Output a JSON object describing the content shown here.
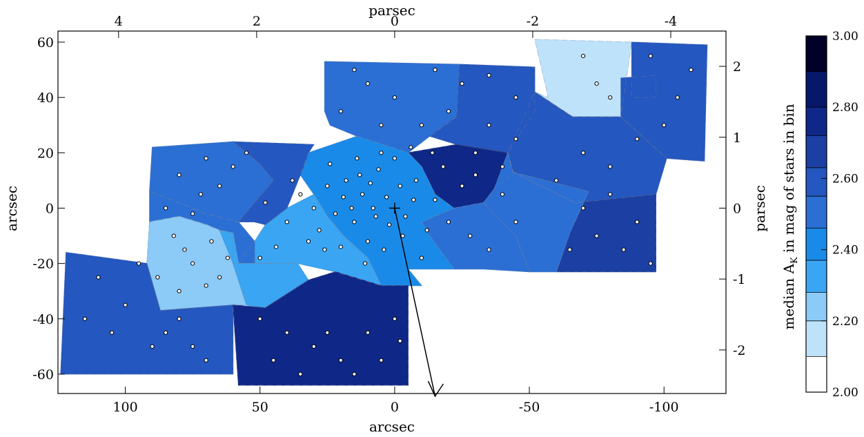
{
  "chart_data": {
    "type": "heatmap",
    "title": "",
    "xlabel_bottom": "arcsec",
    "xlabel_top": "parsec",
    "ylabel_left": "arcsec",
    "ylabel_right": "parsec",
    "xlim": [
      125,
      -123
    ],
    "ylim": [
      -67,
      64
    ],
    "x_ticks": [
      100,
      50,
      0,
      -50,
      -100
    ],
    "x_tick_labels": [
      "100",
      "50",
      "0",
      "-50",
      "-100"
    ],
    "y_ticks": [
      60,
      40,
      20,
      0,
      -20,
      -40,
      -60
    ],
    "y_tick_labels": [
      "60",
      "40",
      "20",
      "0",
      "-20",
      "-40",
      "-60"
    ],
    "top_ticks_arcsec": [
      102.5,
      51.25,
      0,
      -51.25,
      -102.5
    ],
    "top_tick_labels": [
      "4",
      "2",
      "0",
      "-2",
      "-4"
    ],
    "right_ticks_arcsec": [
      51.25,
      25.625,
      0,
      -25.625,
      -51.25
    ],
    "right_tick_labels": [
      "2",
      "1",
      "0",
      "-1",
      "-2"
    ],
    "colorbar": {
      "label_prefix": "median A",
      "label_sub": "K",
      "label_suffix": " in mag of stars in bin",
      "range": [
        2.0,
        3.0
      ],
      "tick_values": [
        3.0,
        2.8,
        2.6,
        2.4,
        2.2,
        2.0
      ],
      "tick_labels": [
        "3.00",
        "2.80",
        "2.60",
        "2.40",
        "2.20",
        "2.00"
      ],
      "boundaries": [
        2.0,
        2.1,
        2.2,
        2.28,
        2.37,
        2.46,
        2.55,
        2.63,
        2.72,
        2.8,
        2.9,
        3.0
      ],
      "colors": [
        "#ffffff",
        "#bfe2fb",
        "#8ccaf7",
        "#3aa5f3",
        "#1a8ae8",
        "#2b6fd4",
        "#2457bf",
        "#1b3fa3",
        "#0f2787",
        "#07186a",
        "#000028"
      ]
    },
    "center_marker_arcsec": [
      0,
      0
    ],
    "arrow_from_arcsec": [
      0,
      0
    ],
    "arrow_to_arcsec": [
      -15,
      -68
    ],
    "bins": [
      {
        "poly": [
          [
            26,
            53
          ],
          [
            -24,
            52
          ],
          [
            -23,
            33
          ],
          [
            -13,
            26
          ],
          [
            -5,
            20
          ],
          [
            14,
            26
          ],
          [
            24,
            30
          ],
          [
            26,
            35
          ]
        ],
        "value": 2.46
      },
      {
        "poly": [
          [
            -24,
            52
          ],
          [
            -52,
            51
          ],
          [
            -52,
            35
          ],
          [
            -42,
            20
          ],
          [
            -23,
            23
          ],
          [
            -13,
            26
          ],
          [
            -23,
            33
          ]
        ],
        "value": 2.55
      },
      {
        "poly": [
          [
            -52,
            61
          ],
          [
            -88,
            60
          ],
          [
            -84,
            33
          ],
          [
            -66,
            33
          ],
          [
            -52,
            42
          ],
          [
            -57,
            40
          ]
        ],
        "value": 2.1
      },
      {
        "poly": [
          [
            -88,
            60
          ],
          [
            -116,
            59
          ],
          [
            -115,
            17
          ],
          [
            -101,
            18
          ],
          [
            -84,
            33
          ],
          [
            -84,
            47
          ],
          [
            -97,
            48
          ],
          [
            -97,
            40
          ],
          [
            -88,
            40
          ]
        ],
        "value": 2.55
      },
      {
        "poly": [
          [
            -52,
            42
          ],
          [
            -66,
            33
          ],
          [
            -84,
            33
          ],
          [
            -101,
            18
          ],
          [
            -97,
            5
          ],
          [
            -67,
            2
          ],
          [
            -44,
            13
          ],
          [
            -42,
            20
          ]
        ],
        "value": 2.55
      },
      {
        "poly": [
          [
            -44,
            13
          ],
          [
            -67,
            2
          ],
          [
            -97,
            5
          ],
          [
            -97,
            -23
          ],
          [
            -60,
            -23
          ],
          [
            -65,
            -9
          ],
          [
            -72,
            6
          ]
        ],
        "value": 2.63
      },
      {
        "poly": [
          [
            -5,
            20
          ],
          [
            -23,
            23
          ],
          [
            -42,
            20
          ],
          [
            -44,
            13
          ],
          [
            -37,
            7
          ],
          [
            -33,
            2
          ],
          [
            -22,
            0
          ],
          [
            -15,
            5
          ],
          [
            -10,
            15
          ]
        ],
        "value": 2.72
      },
      {
        "poly": [
          [
            -42,
            20
          ],
          [
            -44,
            13
          ],
          [
            -72,
            6
          ],
          [
            -65,
            -9
          ],
          [
            -60,
            -23
          ],
          [
            -50,
            -23
          ],
          [
            -45,
            -10
          ],
          [
            -33,
            2
          ],
          [
            -37,
            7
          ]
        ],
        "value": 2.46
      },
      {
        "poly": [
          [
            -33,
            2
          ],
          [
            -45,
            -10
          ],
          [
            -50,
            -23
          ],
          [
            -33,
            -22
          ],
          [
            -22,
            -22
          ],
          [
            -13,
            -10
          ],
          [
            -10,
            -5
          ],
          [
            -22,
            0
          ]
        ],
        "value": 2.46
      },
      {
        "poly": [
          [
            14,
            26
          ],
          [
            -5,
            20
          ],
          [
            -10,
            15
          ],
          [
            -15,
            5
          ],
          [
            -22,
            0
          ],
          [
            -10,
            -5
          ],
          [
            -13,
            -10
          ],
          [
            -22,
            -22
          ],
          [
            -5,
            -22
          ],
          [
            -10,
            -28
          ],
          [
            5,
            -28
          ],
          [
            10,
            -18
          ],
          [
            19,
            -10
          ],
          [
            25,
            -3
          ],
          [
            30,
            5
          ],
          [
            35,
            12
          ],
          [
            32,
            20
          ]
        ],
        "value": 2.37
      },
      {
        "poly": [
          [
            30,
            5
          ],
          [
            25,
            -3
          ],
          [
            19,
            -10
          ],
          [
            10,
            -18
          ],
          [
            5,
            -28
          ],
          [
            22,
            -23
          ],
          [
            36,
            -20
          ],
          [
            58,
            -20
          ],
          [
            52,
            -12
          ],
          [
            48,
            -6
          ],
          [
            40,
            0
          ]
        ],
        "value": 2.28
      },
      {
        "poly": [
          [
            90,
            22
          ],
          [
            60,
            24
          ],
          [
            50,
            16
          ],
          [
            45,
            10
          ],
          [
            52,
            2
          ],
          [
            58,
            -5
          ],
          [
            70,
            -2
          ],
          [
            80,
            2
          ],
          [
            91,
            6
          ]
        ],
        "value": 2.46
      },
      {
        "poly": [
          [
            60,
            24
          ],
          [
            30,
            23
          ],
          [
            32,
            20
          ],
          [
            35,
            12
          ],
          [
            40,
            0
          ],
          [
            48,
            -6
          ],
          [
            52,
            -5
          ],
          [
            58,
            -5
          ],
          [
            52,
            2
          ],
          [
            45,
            10
          ],
          [
            50,
            16
          ]
        ],
        "value": 2.55
      },
      {
        "poly": [
          [
            91,
            6
          ],
          [
            80,
            2
          ],
          [
            70,
            -2
          ],
          [
            58,
            -5
          ],
          [
            52,
            -12
          ],
          [
            52,
            -20
          ],
          [
            45,
            -20
          ],
          [
            60,
            -20
          ],
          [
            60,
            -9
          ],
          [
            65,
            -8
          ],
          [
            70,
            -6
          ],
          [
            80,
            -3
          ],
          [
            91,
            -5
          ]
        ],
        "value": 2.46
      },
      {
        "poly": [
          [
            91,
            -5
          ],
          [
            80,
            -3
          ],
          [
            70,
            -6
          ],
          [
            65,
            -8
          ],
          [
            60,
            -9
          ],
          [
            60,
            -20
          ],
          [
            55,
            -35
          ],
          [
            60,
            -35
          ],
          [
            87,
            -37
          ],
          [
            92,
            -20
          ]
        ],
        "value": 2.2
      },
      {
        "poly": [
          [
            65,
            -8
          ],
          [
            60,
            -9
          ],
          [
            58,
            -20
          ],
          [
            58,
            -20
          ],
          [
            36,
            -20
          ],
          [
            32,
            -26
          ],
          [
            48,
            -36
          ],
          [
            55,
            -35
          ],
          [
            60,
            -20
          ]
        ],
        "value": 2.28
      },
      {
        "poly": [
          [
            122,
            -16
          ],
          [
            92,
            -20
          ],
          [
            87,
            -37
          ],
          [
            60,
            -35
          ],
          [
            60,
            -60
          ],
          [
            124,
            -60
          ]
        ],
        "value": 2.55
      },
      {
        "poly": [
          [
            60,
            -35
          ],
          [
            48,
            -36
          ],
          [
            32,
            -26
          ],
          [
            22,
            -23
          ],
          [
            5,
            -28
          ],
          [
            -5,
            -28
          ],
          [
            -5,
            -64
          ],
          [
            58,
            -64
          ]
        ],
        "value": 2.72
      }
    ],
    "stars_arcsec": [
      [
        3,
        4
      ],
      [
        -2,
        8
      ],
      [
        8,
        0
      ],
      [
        -4,
        -3
      ],
      [
        12,
        5
      ],
      [
        15,
        -5
      ],
      [
        -8,
        10
      ],
      [
        6,
        14
      ],
      [
        10,
        -12
      ],
      [
        -12,
        -8
      ],
      [
        18,
        10
      ],
      [
        22,
        -2
      ],
      [
        -15,
        3
      ],
      [
        4,
        -15
      ],
      [
        14,
        18
      ],
      [
        20,
        -14
      ],
      [
        -18,
        15
      ],
      [
        25,
        8
      ],
      [
        28,
        -8
      ],
      [
        -6,
        22
      ],
      [
        0,
        18
      ],
      [
        -10,
        -18
      ],
      [
        16,
        0
      ],
      [
        9,
        9
      ],
      [
        -3,
        -10
      ],
      [
        30,
        0
      ],
      [
        -20,
        -5
      ],
      [
        24,
        16
      ],
      [
        11,
        -20
      ],
      [
        5,
        20
      ],
      [
        -14,
        20
      ],
      [
        32,
        -12
      ],
      [
        2,
        -6
      ],
      [
        7,
        -3
      ],
      [
        -7,
        3
      ],
      [
        13,
        12
      ],
      [
        19,
        4
      ],
      [
        26,
        -15
      ],
      [
        -25,
        8
      ],
      [
        35,
        5
      ],
      [
        -30,
        12
      ],
      [
        -28,
        -10
      ],
      [
        40,
        -5
      ],
      [
        38,
        10
      ],
      [
        44,
        -14
      ],
      [
        -35,
        -15
      ],
      [
        -40,
        5
      ],
      [
        48,
        2
      ],
      [
        50,
        -18
      ],
      [
        -45,
        -5
      ],
      [
        70,
        18
      ],
      [
        80,
        12
      ],
      [
        65,
        8
      ],
      [
        75,
        -2
      ],
      [
        85,
        0
      ],
      [
        60,
        15
      ],
      [
        72,
        5
      ],
      [
        55,
        20
      ],
      [
        82,
        -10
      ],
      [
        68,
        -12
      ],
      [
        78,
        -15
      ],
      [
        62,
        -18
      ],
      [
        88,
        -25
      ],
      [
        70,
        -28
      ],
      [
        80,
        -30
      ],
      [
        65,
        -25
      ],
      [
        75,
        -20
      ],
      [
        110,
        -25
      ],
      [
        100,
        -35
      ],
      [
        105,
        -45
      ],
      [
        95,
        -20
      ],
      [
        115,
        -40
      ],
      [
        90,
        -50
      ],
      [
        85,
        -45
      ],
      [
        75,
        -50
      ],
      [
        70,
        -55
      ],
      [
        80,
        -40
      ],
      [
        50,
        -40
      ],
      [
        40,
        -45
      ],
      [
        30,
        -50
      ],
      [
        20,
        -55
      ],
      [
        10,
        -45
      ],
      [
        0,
        -40
      ],
      [
        45,
        -55
      ],
      [
        35,
        -60
      ],
      [
        25,
        -45
      ],
      [
        15,
        -60
      ],
      [
        5,
        -55
      ],
      [
        -2,
        -48
      ],
      [
        -30,
        20
      ],
      [
        -35,
        30
      ],
      [
        -40,
        15
      ],
      [
        -45,
        25
      ],
      [
        -20,
        35
      ],
      [
        -10,
        30
      ],
      [
        0,
        40
      ],
      [
        10,
        45
      ],
      [
        20,
        35
      ],
      [
        -25,
        45
      ],
      [
        -35,
        48
      ],
      [
        -45,
        40
      ],
      [
        -15,
        50
      ],
      [
        15,
        50
      ],
      [
        5,
        30
      ],
      [
        -60,
        10
      ],
      [
        -70,
        0
      ],
      [
        -80,
        5
      ],
      [
        -90,
        -5
      ],
      [
        -65,
        -15
      ],
      [
        -75,
        -10
      ],
      [
        -85,
        -15
      ],
      [
        -95,
        -20
      ],
      [
        -70,
        20
      ],
      [
        -80,
        15
      ],
      [
        -90,
        25
      ],
      [
        -100,
        30
      ],
      [
        -105,
        40
      ],
      [
        -110,
        50
      ],
      [
        -95,
        55
      ],
      [
        -70,
        55
      ],
      [
        -75,
        45
      ],
      [
        -80,
        40
      ]
    ]
  }
}
